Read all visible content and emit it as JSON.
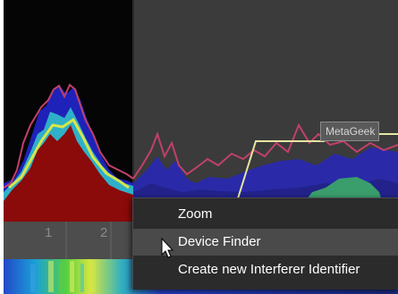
{
  "context_menu": {
    "items": [
      {
        "label": "Zoom"
      },
      {
        "label": "Device Finder"
      },
      {
        "label": "Create new Interferer Identifier"
      }
    ],
    "highlighted_index": 1
  },
  "graph": {
    "tag_label": "MetaGeek",
    "x_ticks": [
      "1",
      "2"
    ]
  },
  "colors": {
    "menu_bg": "#2b2b2b",
    "menu_hover": "#4a4a4a",
    "plot_bg": "#161616",
    "panel_bg": "#3a3a3a",
    "density_red": "#8b0a0a",
    "density_blue": "#1a1aa8",
    "trace_line": "#c2406a",
    "outline_line": "#e6e6a0"
  }
}
